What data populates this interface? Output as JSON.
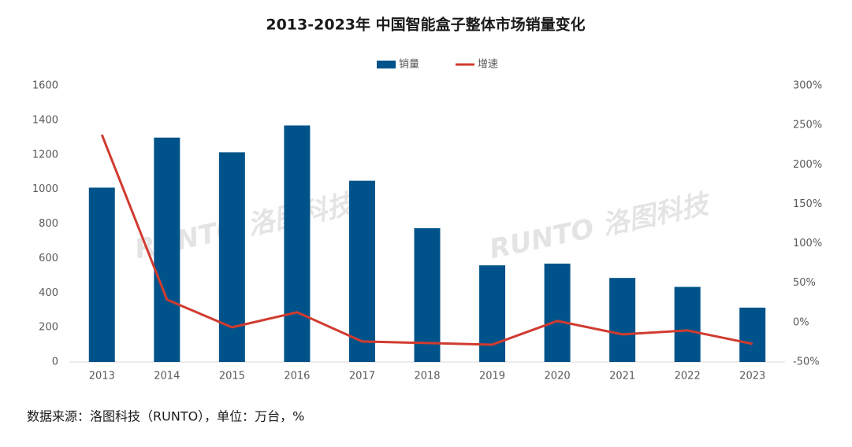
{
  "chart_data": {
    "type": "bar_line",
    "title": "2013-2023年 中国智能盒子整体市场销量变化",
    "categories": [
      "2013",
      "2014",
      "2015",
      "2016",
      "2017",
      "2018",
      "2019",
      "2020",
      "2021",
      "2022",
      "2023"
    ],
    "series": [
      {
        "name": "销量",
        "color": "#00538a",
        "type": "bar",
        "values": [
          1010,
          1300,
          1215,
          1370,
          1050,
          775,
          560,
          570,
          487,
          435,
          315
        ]
      },
      {
        "name": "增速",
        "color": "#d13b2f",
        "type": "line",
        "axis": "y2",
        "values": [
          238,
          29,
          -6,
          13,
          -24,
          -26,
          -28,
          2,
          -15,
          -10,
          -27
        ]
      }
    ],
    "ylim": [
      0,
      1600
    ],
    "yticks": [
      0,
      200,
      400,
      600,
      800,
      1000,
      1200,
      1400,
      1600
    ],
    "y2lim": [
      -50,
      300
    ],
    "y2ticks": [
      {
        "value": -50,
        "label": "-50%"
      },
      {
        "value": 0,
        "label": "0%"
      },
      {
        "value": 50,
        "label": "50%"
      },
      {
        "value": 100,
        "label": "100%"
      },
      {
        "value": 150,
        "label": "150%"
      },
      {
        "value": 200,
        "label": "200%"
      },
      {
        "value": 250,
        "label": "250%"
      },
      {
        "value": 300,
        "label": "300%"
      }
    ],
    "legend": "top",
    "watermark": "RUNTO 洛图科技",
    "note": "数据来源：洛图科技（RUNTO），单位：万台，%"
  }
}
